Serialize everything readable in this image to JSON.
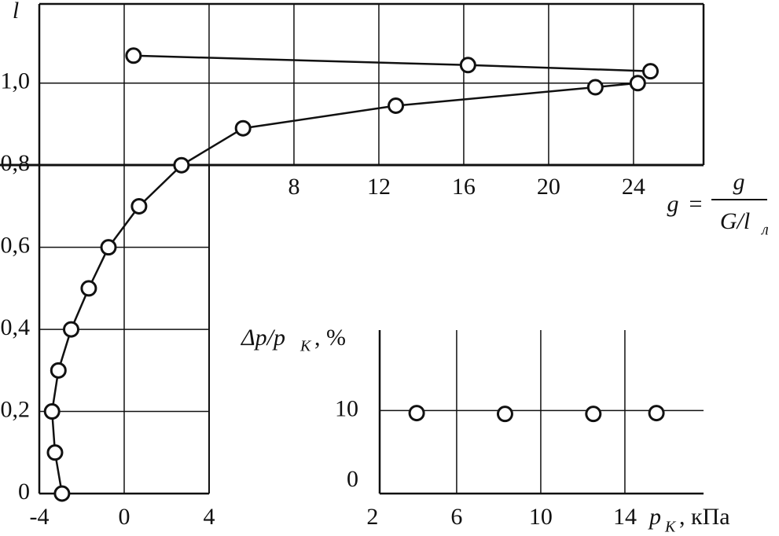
{
  "chart_data": [
    {
      "type": "line",
      "y_label": "l",
      "x_label": {
        "lhs": "g",
        "equals": "=",
        "numerator": "g",
        "denominator": "G/l",
        "denominator_sub": "л"
      },
      "xlim": [
        -4,
        27.3
      ],
      "ylim": [
        0,
        1.193
      ],
      "xticks": [
        -4,
        0,
        4
      ],
      "x2ticks": [
        8,
        12,
        16,
        20,
        24
      ],
      "yticks": [
        0,
        {
          "value": 0.2,
          "label": "0,2"
        },
        {
          "value": 0.4,
          "label": "0,4"
        },
        {
          "value": 0.6,
          "label": "0,6"
        },
        {
          "value": 0.8,
          "label": "0,8"
        },
        {
          "value": 1.0,
          "label": "1,0"
        }
      ],
      "grid": true,
      "series": [
        {
          "color": "#111111",
          "x": [
            -2.93,
            -3.26,
            -3.4,
            -3.1,
            -2.5,
            -1.67,
            -0.74,
            0.7,
            2.7,
            5.6,
            12.8,
            22.2,
            24.2
          ],
          "values": [
            0.0,
            0.1,
            0.2,
            0.3,
            0.4,
            0.5,
            0.6,
            0.7,
            0.8,
            0.89,
            0.945,
            0.99,
            1.0
          ]
        },
        {
          "color": "#111111",
          "x": [
            0.44,
            16.2,
            24.8
          ],
          "values": [
            1.067,
            1.044,
            1.029
          ]
        }
      ]
    },
    {
      "type": "scatter",
      "y_label": {
        "main": "Δp/p",
        "sub": "K",
        "unit": ", %"
      },
      "x_label": {
        "main": "p",
        "sub": "K",
        "unit": ", кПа"
      },
      "xlim": [
        2.34,
        17.74
      ],
      "ylim": [
        0,
        19.7
      ],
      "xticks": [
        2,
        6,
        10,
        14
      ],
      "yticks": [
        0,
        10
      ],
      "grid": true,
      "series": [
        {
          "color": "#111111",
          "x": [
            4.1,
            8.3,
            12.5,
            15.5
          ],
          "values": [
            9.7,
            9.6,
            9.6,
            9.7
          ]
        }
      ]
    }
  ]
}
